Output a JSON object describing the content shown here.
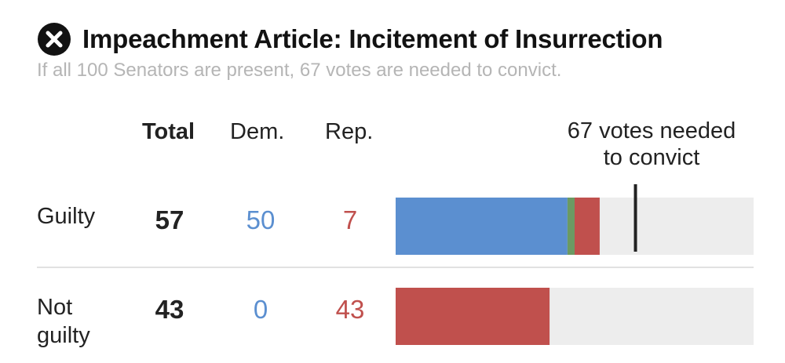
{
  "header": {
    "icon": "x-circle-icon",
    "title": "Impeachment Article: Incitement of Insurrection",
    "subtitle": "If all 100 Senators are present, 67 votes are needed to convict."
  },
  "columns": {
    "total": "Total",
    "dem": "Dem.",
    "rep": "Rep."
  },
  "threshold": {
    "line1": "67 votes needed",
    "line2": "to convict",
    "value": 67
  },
  "rows": [
    {
      "label": "Guilty",
      "total": "57",
      "dem": "50",
      "rep": "7"
    },
    {
      "label": "Not guilty",
      "total": "43",
      "dem": "0",
      "rep": "43"
    }
  ],
  "colors": {
    "democrat": "#5b8fd0",
    "independent": "#6b9a63",
    "republican": "#c0504d",
    "remaining": "#ededed",
    "threshold": "#222222"
  },
  "chart_data": {
    "type": "bar",
    "stacked": true,
    "orientation": "horizontal",
    "categories": [
      "Guilty",
      "Not guilty"
    ],
    "series": [
      {
        "name": "Dem.",
        "color": "#5b8fd0",
        "values": [
          48,
          0
        ]
      },
      {
        "name": "",
        "color": "#6b9a63",
        "values": [
          2,
          0
        ]
      },
      {
        "name": "Rep.",
        "color": "#c0504d",
        "values": [
          7,
          43
        ]
      }
    ],
    "xlim": [
      0,
      100
    ],
    "threshold": 67
  }
}
